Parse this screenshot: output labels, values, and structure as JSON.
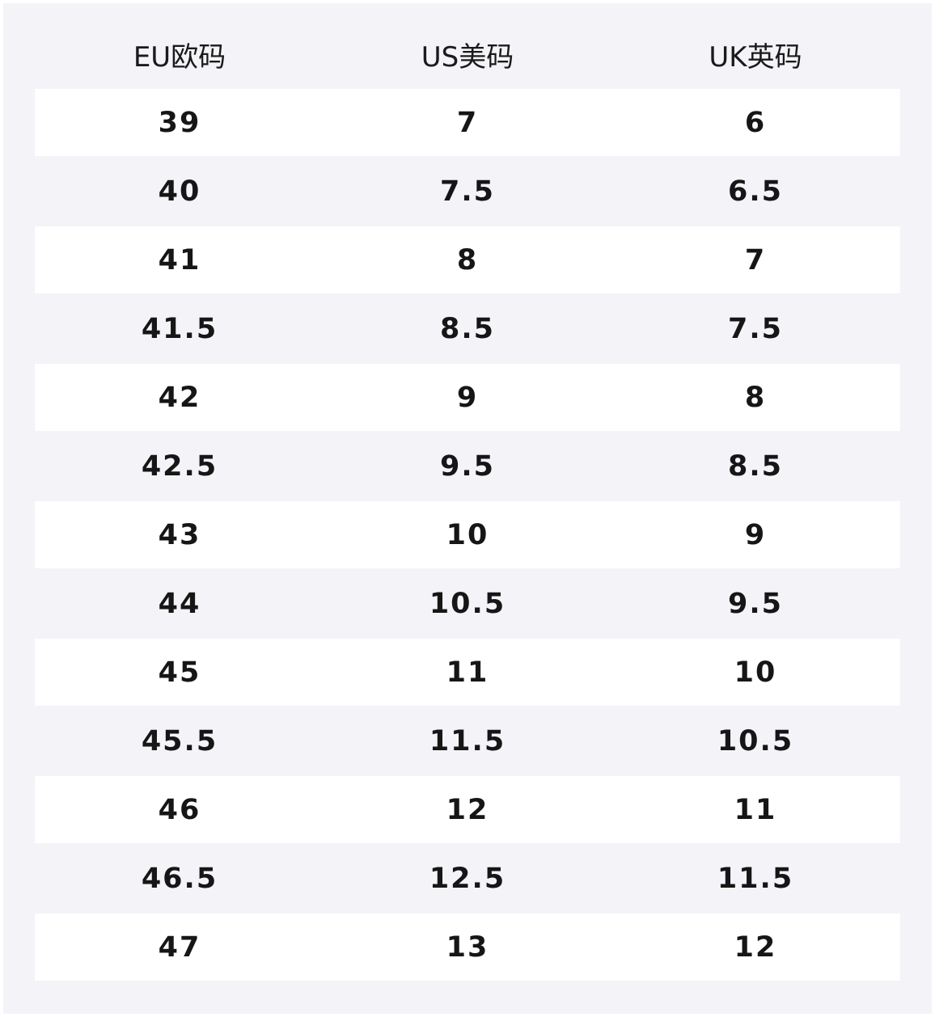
{
  "table": {
    "header": [
      "EU欧码",
      "US美码",
      "UK英码"
    ],
    "rows": [
      [
        "39",
        "7",
        "6"
      ],
      [
        "40",
        "7.5",
        "6.5"
      ],
      [
        "41",
        "8",
        "7"
      ],
      [
        "41.5",
        "8.5",
        "7.5"
      ],
      [
        "42",
        "9",
        "8"
      ],
      [
        "42.5",
        "9.5",
        "8.5"
      ],
      [
        "43",
        "10",
        "9"
      ],
      [
        "44",
        "10.5",
        "9.5"
      ],
      [
        "45",
        "11",
        "10"
      ],
      [
        "45.5",
        "11.5",
        "10.5"
      ],
      [
        "46",
        "12",
        "11"
      ],
      [
        "46.5",
        "12.5",
        "11.5"
      ],
      [
        "47",
        "13",
        "12"
      ]
    ]
  }
}
